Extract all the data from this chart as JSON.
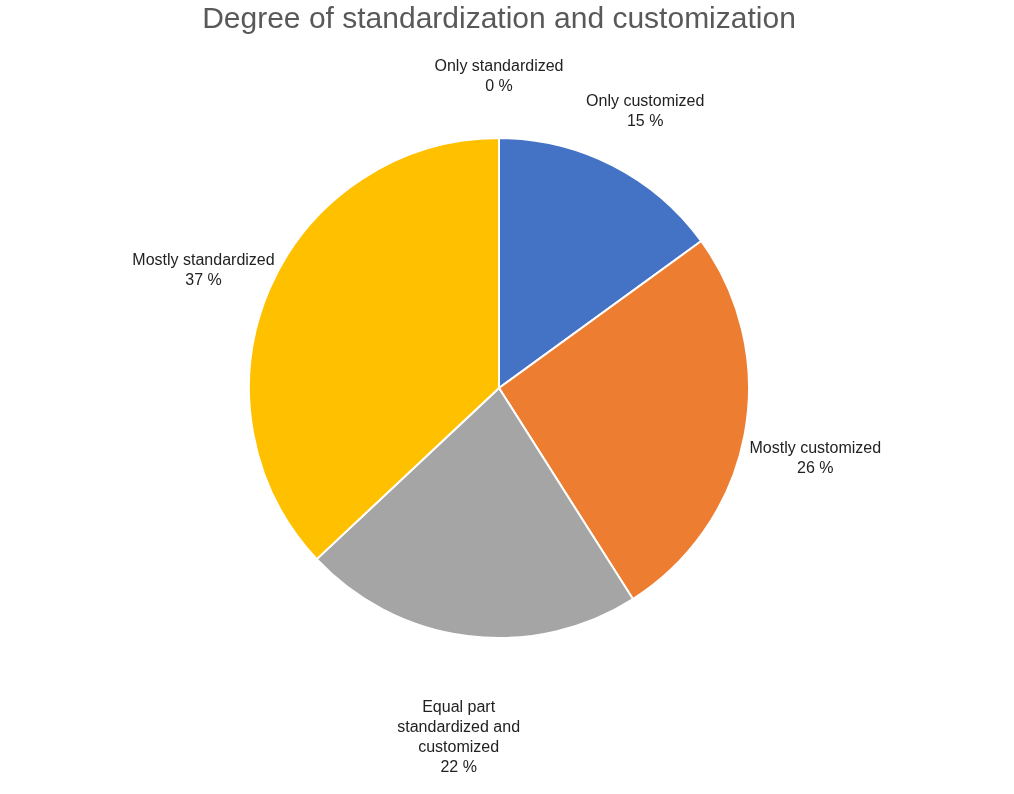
{
  "chart_data": {
    "type": "pie",
    "title": "Degree of standardization and customization",
    "categories": [
      "Only customized",
      "Mostly customized",
      "Equal part standardized and customized",
      "Mostly standardized",
      "Only standardized"
    ],
    "values": [
      15,
      26,
      22,
      37,
      0
    ],
    "colors": [
      "#4472c4",
      "#ed7d31",
      "#a5a5a5",
      "#ffc000",
      "#5b9bd5"
    ],
    "value_labels": [
      "15 %",
      "26 %",
      "22 %",
      "37 %",
      "0 %"
    ]
  }
}
